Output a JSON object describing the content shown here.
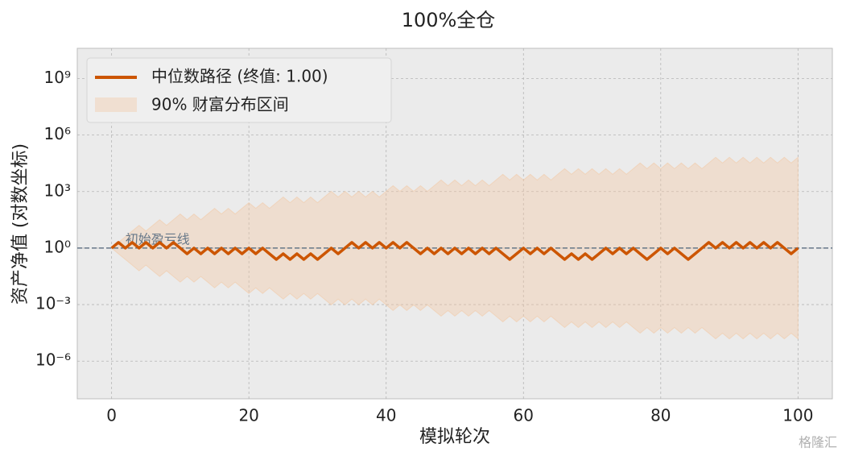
{
  "chart_data": {
    "type": "line",
    "title": "100%全仓",
    "x_label": "模拟轮次",
    "y_label": "资产净值 (对数坐标)",
    "x": [
      0,
      1,
      2,
      3,
      4,
      5,
      6,
      7,
      8,
      9,
      10,
      11,
      12,
      13,
      14,
      15,
      16,
      17,
      18,
      19,
      20,
      21,
      22,
      23,
      24,
      25,
      26,
      27,
      28,
      29,
      30,
      31,
      32,
      33,
      34,
      35,
      36,
      37,
      38,
      39,
      40,
      41,
      42,
      43,
      44,
      45,
      46,
      47,
      48,
      49,
      50,
      51,
      52,
      53,
      54,
      55,
      56,
      57,
      58,
      59,
      60,
      61,
      62,
      63,
      64,
      65,
      66,
      67,
      68,
      69,
      70,
      71,
      72,
      73,
      74,
      75,
      76,
      77,
      78,
      79,
      80,
      81,
      82,
      83,
      84,
      85,
      86,
      87,
      88,
      89,
      90,
      91,
      92,
      93,
      94,
      95,
      96,
      97,
      98,
      99,
      100
    ],
    "series": [
      {
        "name": "中位数路径 (终值: 1.00)",
        "color": "#cc5500",
        "values": [
          1,
          2,
          1,
          2,
          1,
          2,
          1,
          2,
          1,
          2,
          1,
          0.5,
          1,
          0.5,
          1,
          0.5,
          1,
          0.5,
          1,
          0.5,
          1,
          0.5,
          1,
          0.5,
          0.25,
          0.5,
          0.25,
          0.5,
          0.25,
          0.5,
          0.25,
          0.5,
          1,
          0.5,
          1,
          2,
          1,
          2,
          1,
          2,
          1,
          2,
          1,
          2,
          1,
          0.5,
          1,
          0.5,
          1,
          0.5,
          1,
          0.5,
          1,
          0.5,
          1,
          0.5,
          1,
          0.5,
          0.25,
          0.5,
          1,
          0.5,
          1,
          0.5,
          1,
          0.5,
          0.25,
          0.5,
          0.25,
          0.5,
          0.25,
          0.5,
          1,
          0.5,
          1,
          0.5,
          1,
          0.5,
          0.25,
          0.5,
          1,
          0.5,
          1,
          0.5,
          0.25,
          0.5,
          1,
          2,
          1,
          2,
          1,
          2,
          1,
          2,
          1,
          2,
          1,
          2,
          1,
          0.5,
          1
        ]
      }
    ],
    "band": {
      "name": "90% 财富分布区间",
      "color": "#f2c9a6",
      "upper": [
        1,
        2,
        4,
        8,
        16,
        8,
        16,
        32,
        16,
        32,
        64,
        32,
        64,
        32,
        64,
        128,
        64,
        128,
        64,
        128,
        256,
        128,
        256,
        128,
        256,
        512,
        256,
        512,
        256,
        512,
        256,
        512,
        1024,
        512,
        1024,
        512,
        1024,
        512,
        1024,
        512,
        1024,
        2048,
        1024,
        2048,
        1024,
        2048,
        1024,
        2048,
        4096,
        2048,
        4096,
        2048,
        4096,
        2048,
        4096,
        2048,
        4096,
        8192,
        4096,
        8192,
        4096,
        8192,
        4096,
        8192,
        4096,
        8192,
        16384,
        8192,
        16384,
        8192,
        16384,
        8192,
        16384,
        8192,
        16384,
        8192,
        16384,
        32768,
        16384,
        32768,
        16384,
        32768,
        16384,
        32768,
        16384,
        32768,
        16384,
        32768,
        65536,
        32768,
        65536,
        32768,
        65536,
        32768,
        65536,
        32768,
        65536,
        32768,
        65536,
        32768,
        65536
      ],
      "lower": [
        1,
        0.5,
        0.25,
        0.125,
        0.0625,
        0.125,
        0.0625,
        0.03125,
        0.0625,
        0.03125,
        0.015625,
        0.03125,
        0.015625,
        0.03125,
        0.015625,
        0.0078125,
        0.015625,
        0.0078125,
        0.015625,
        0.0078125,
        0.00390625,
        0.0078125,
        0.00390625,
        0.0078125,
        0.00390625,
        0.001953125,
        0.00390625,
        0.001953125,
        0.00390625,
        0.001953125,
        0.00390625,
        0.001953125,
        0.0009765625,
        0.001953125,
        0.0009765625,
        0.001953125,
        0.0009765625,
        0.001953125,
        0.0009765625,
        0.001953125,
        0.0009765625,
        0.00048828125,
        0.0009765625,
        0.00048828125,
        0.0009765625,
        0.00048828125,
        0.0009765625,
        0.00048828125,
        0.000244140625,
        0.00048828125,
        0.000244140625,
        0.00048828125,
        0.000244140625,
        0.00048828125,
        0.000244140625,
        0.00048828125,
        0.000244140625,
        0.0001220703125,
        0.000244140625,
        0.0001220703125,
        0.000244140625,
        0.0001220703125,
        0.000244140625,
        0.0001220703125,
        0.000244140625,
        0.0001220703125,
        6.103515625e-05,
        0.0001220703125,
        6.103515625e-05,
        0.0001220703125,
        6.103515625e-05,
        0.0001220703125,
        6.103515625e-05,
        0.0001220703125,
        6.103515625e-05,
        0.0001220703125,
        6.103515625e-05,
        3.0517578125e-05,
        6.103515625e-05,
        3.0517578125e-05,
        6.103515625e-05,
        3.0517578125e-05,
        6.103515625e-05,
        3.0517578125e-05,
        6.103515625e-05,
        3.0517578125e-05,
        6.103515625e-05,
        3.0517578125e-05,
        1.52587890625e-05,
        3.0517578125e-05,
        1.52587890625e-05,
        3.0517578125e-05,
        1.52587890625e-05,
        3.0517578125e-05,
        1.52587890625e-05,
        3.0517578125e-05,
        1.52587890625e-05,
        3.0517578125e-05,
        1.52587890625e-05,
        3.0517578125e-05,
        1.52587890625e-05
      ]
    },
    "reference_line": {
      "value": 1,
      "label": "初始盈亏线",
      "color": "#667788"
    },
    "xlim": [
      -5,
      105
    ],
    "ylim": [
      1e-08,
      40000000000.0
    ],
    "xticks": [
      0,
      20,
      40,
      60,
      80,
      100
    ],
    "yticks": [
      {
        "value": 1e-06,
        "label": "10⁻⁶"
      },
      {
        "value": 0.001,
        "label": "10⁻³"
      },
      {
        "value": 1,
        "label": "10⁰"
      },
      {
        "value": 1000,
        "label": "10³"
      },
      {
        "value": 1000000,
        "label": "10⁶"
      },
      {
        "value": 1000000000,
        "label": "10⁹"
      }
    ],
    "log_y": true,
    "grid": true,
    "legend": "upper left"
  },
  "watermark": "格隆汇"
}
